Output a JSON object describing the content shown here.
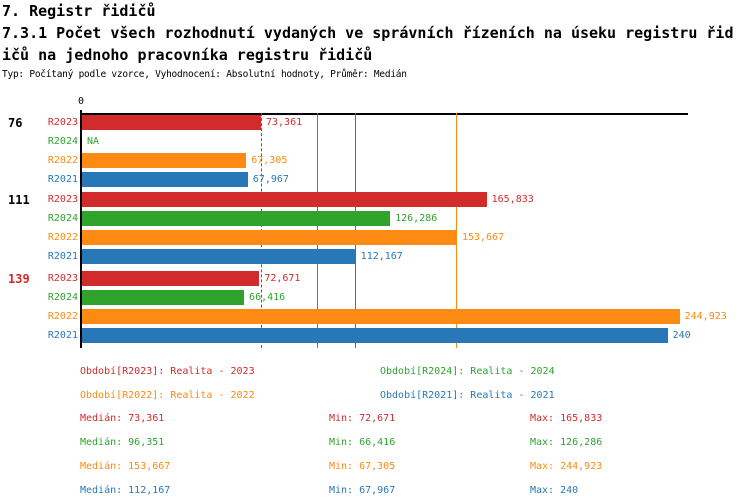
{
  "header": {
    "line1": "7. Registr řidičů",
    "line2": "7.3.1 Počet všech rozhodnutí vydaných ve správních řízeních na úseku registru řid",
    "line3": "ičů na jednoho pracovníka registru řidičů",
    "meta": "Typ: Počítaný podle vzorce, Vyhodnocení: Absolutní hodnoty, Průměr: Medián"
  },
  "chart_data": {
    "type": "bar",
    "orientation": "horizontal",
    "axis_zero_label": "0",
    "xlim": [
      0,
      248
    ],
    "grid": false,
    "series_colors": {
      "R2023": "#d22b2b",
      "R2024": "#2fa32c",
      "R2022": "#fc8a13",
      "R2021": "#2878b8"
    },
    "groups": [
      {
        "group_label": "76",
        "group_label_color": "#000000",
        "bars": [
          {
            "series": "R2023",
            "value": 73.361,
            "display": "73,361"
          },
          {
            "series": "R2024",
            "value": null,
            "display": "NA"
          },
          {
            "series": "R2022",
            "value": 67.305,
            "display": "67,305"
          },
          {
            "series": "R2021",
            "value": 67.967,
            "display": "67,967"
          }
        ]
      },
      {
        "group_label": "111",
        "group_label_color": "#000000",
        "bars": [
          {
            "series": "R2023",
            "value": 165.833,
            "display": "165,833"
          },
          {
            "series": "R2024",
            "value": 126.286,
            "display": "126,286"
          },
          {
            "series": "R2022",
            "value": 153.667,
            "display": "153,667"
          },
          {
            "series": "R2021",
            "value": 112.167,
            "display": "112,167"
          }
        ]
      },
      {
        "group_label": "139",
        "group_label_color": "#d22b2b",
        "bars": [
          {
            "series": "R2023",
            "value": 72.671,
            "display": "72,671"
          },
          {
            "series": "R2024",
            "value": 66.416,
            "display": "66,416"
          },
          {
            "series": "R2022",
            "value": 244.923,
            "display": "244,923"
          },
          {
            "series": "R2021",
            "value": 240.0,
            "display": "240"
          }
        ]
      }
    ],
    "median_lines": [
      {
        "series": "R2023",
        "value": 73.361,
        "style": "dashed"
      },
      {
        "series": "R2024",
        "value": 96.351,
        "style": "solid"
      },
      {
        "series": "R2021",
        "value": 112.167,
        "style": "solid"
      },
      {
        "series": "R2022",
        "value": 153.667,
        "style": "solid"
      }
    ]
  },
  "legend": {
    "items": [
      {
        "series": "R2023",
        "text": "Období[R2023]: Realita - 2023"
      },
      {
        "series": "R2024",
        "text": "Období[R2024]: Realita - 2024"
      },
      {
        "series": "R2022",
        "text": "Období[R2022]: Realita - 2022"
      },
      {
        "series": "R2021",
        "text": "Období[R2021]: Realita - 2021"
      }
    ]
  },
  "stats": {
    "rows": [
      {
        "series": "R2023",
        "median": "Medián: 73,361",
        "min": "Min: 72,671",
        "max": "Max: 165,833"
      },
      {
        "series": "R2024",
        "median": "Medián: 96,351",
        "min": "Min: 66,416",
        "max": "Max: 126,286"
      },
      {
        "series": "R2022",
        "median": "Medián: 153,667",
        "min": "Min: 67,305",
        "max": "Max: 244,923"
      },
      {
        "series": "R2021",
        "median": "Medián: 112,167",
        "min": "Min: 67,967",
        "max": "Max: 240"
      }
    ]
  }
}
